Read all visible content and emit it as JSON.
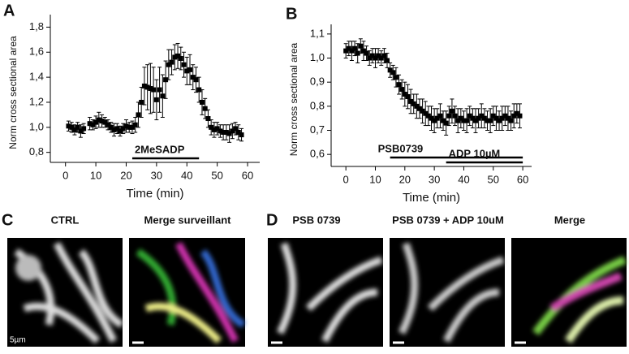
{
  "chart_data": [
    {
      "type": "scatter",
      "panel": "A",
      "x_label": "Time (min)",
      "y_label": "Norm cross sectional area",
      "color": "#000000",
      "xlim": [
        -5,
        64
      ],
      "ylim": [
        0.72,
        1.9
      ],
      "xticks": [
        0,
        10,
        20,
        30,
        40,
        50,
        60
      ],
      "yticks": [
        {
          "value": 0.8,
          "label": "0,8"
        },
        {
          "value": 1.0,
          "label": "1,0"
        },
        {
          "value": 1.2,
          "label": "1,2"
        },
        {
          "value": 1.4,
          "label": "1,4"
        },
        {
          "value": 1.6,
          "label": "1,6"
        },
        {
          "value": 1.8,
          "label": "1,8"
        }
      ],
      "annotations": [
        {
          "text": "2MeSADP",
          "x": [
            22,
            44
          ]
        }
      ],
      "x": [
        1,
        2,
        3,
        4,
        5,
        6,
        8,
        9,
        10,
        11,
        12,
        13,
        14,
        15,
        16,
        17,
        18,
        19,
        20,
        21,
        22,
        23,
        24,
        25,
        26,
        27,
        28,
        29,
        30,
        31,
        32,
        33,
        34,
        35,
        36,
        37,
        38,
        39,
        40,
        41,
        42,
        43,
        44,
        45,
        46,
        47,
        48,
        49,
        50,
        51,
        52,
        53,
        54,
        55,
        56,
        57,
        58
      ],
      "values": [
        1.01,
        1.0,
        0.98,
        1.0,
        0.97,
        0.99,
        1.03,
        1.02,
        1.04,
        1.06,
        1.05,
        1.04,
        1.02,
        1.0,
        0.98,
        0.99,
        0.97,
        0.99,
        1.01,
        1.0,
        1.0,
        1.02,
        1.1,
        1.2,
        1.33,
        1.32,
        1.31,
        1.3,
        1.22,
        1.3,
        1.25,
        1.38,
        1.5,
        1.52,
        1.56,
        1.57,
        1.55,
        1.5,
        1.45,
        1.46,
        1.4,
        1.38,
        1.3,
        1.2,
        1.15,
        1.07,
        1.0,
        0.98,
        0.99,
        0.97,
        0.96,
        0.96,
        0.95,
        0.97,
        0.99,
        0.96,
        0.94
      ],
      "errors": [
        0.04,
        0.04,
        0.04,
        0.04,
        0.05,
        0.04,
        0.05,
        0.04,
        0.05,
        0.06,
        0.05,
        0.04,
        0.04,
        0.04,
        0.05,
        0.04,
        0.04,
        0.04,
        0.05,
        0.04,
        0.05,
        0.06,
        0.1,
        0.12,
        0.15,
        0.18,
        0.2,
        0.18,
        0.16,
        0.18,
        0.17,
        0.15,
        0.12,
        0.1,
        0.1,
        0.1,
        0.09,
        0.1,
        0.11,
        0.12,
        0.1,
        0.1,
        0.1,
        0.1,
        0.08,
        0.07,
        0.06,
        0.06,
        0.05,
        0.05,
        0.06,
        0.06,
        0.07,
        0.06,
        0.05,
        0.06,
        0.05
      ]
    },
    {
      "type": "scatter",
      "panel": "B",
      "x_label": "Time (min)",
      "y_label": "Norm cross sectional area",
      "color": "#000000",
      "xlim": [
        -5,
        63
      ],
      "ylim": [
        0.55,
        1.14
      ],
      "xticks": [
        0,
        10,
        20,
        30,
        40,
        50,
        60
      ],
      "yticks": [
        {
          "value": 0.6,
          "label": "0,6"
        },
        {
          "value": 0.7,
          "label": "0,7"
        },
        {
          "value": 0.8,
          "label": "0,8"
        },
        {
          "value": 0.9,
          "label": "0,9"
        },
        {
          "value": 1.0,
          "label": "1,0"
        },
        {
          "value": 1.1,
          "label": "1,1"
        }
      ],
      "annotations": [
        {
          "text": "PSB0739",
          "x": [
            15,
            60
          ]
        },
        {
          "text": "ADP 10µM",
          "x": [
            34,
            60
          ]
        }
      ],
      "x": [
        0,
        1,
        2,
        3,
        4,
        5,
        6,
        7,
        8,
        9,
        10,
        11,
        12,
        13,
        14,
        15,
        16,
        17,
        18,
        19,
        20,
        21,
        22,
        23,
        24,
        25,
        26,
        27,
        28,
        29,
        30,
        31,
        32,
        33,
        34,
        35,
        36,
        37,
        38,
        39,
        40,
        41,
        42,
        43,
        44,
        45,
        46,
        47,
        48,
        49,
        50,
        51,
        52,
        53,
        54,
        55,
        56,
        57,
        58,
        59
      ],
      "values": [
        1.03,
        1.04,
        1.03,
        1.04,
        1.02,
        1.05,
        1.03,
        1.02,
        1.0,
        1.01,
        1.0,
        1.01,
        1.0,
        1.01,
        0.99,
        0.95,
        0.94,
        0.92,
        0.89,
        0.87,
        0.85,
        0.84,
        0.82,
        0.81,
        0.8,
        0.79,
        0.78,
        0.77,
        0.76,
        0.75,
        0.74,
        0.75,
        0.76,
        0.74,
        0.73,
        0.76,
        0.78,
        0.76,
        0.74,
        0.75,
        0.74,
        0.74,
        0.76,
        0.75,
        0.74,
        0.75,
        0.76,
        0.75,
        0.74,
        0.74,
        0.76,
        0.75,
        0.74,
        0.75,
        0.76,
        0.75,
        0.74,
        0.76,
        0.77,
        0.76
      ],
      "errors": [
        0.03,
        0.03,
        0.04,
        0.03,
        0.04,
        0.03,
        0.04,
        0.03,
        0.03,
        0.03,
        0.04,
        0.03,
        0.03,
        0.03,
        0.03,
        0.03,
        0.03,
        0.04,
        0.04,
        0.04,
        0.05,
        0.05,
        0.05,
        0.04,
        0.05,
        0.04,
        0.05,
        0.05,
        0.04,
        0.05,
        0.05,
        0.04,
        0.05,
        0.04,
        0.05,
        0.04,
        0.05,
        0.04,
        0.05,
        0.04,
        0.04,
        0.05,
        0.04,
        0.04,
        0.05,
        0.04,
        0.05,
        0.04,
        0.04,
        0.05,
        0.04,
        0.05,
        0.04,
        0.05,
        0.04,
        0.05,
        0.04,
        0.05,
        0.04,
        0.05
      ]
    }
  ],
  "panels": {
    "c": {
      "label": "C",
      "captions": [
        "CTRL",
        "Merge surveillant"
      ],
      "scale_bar": "5µm"
    },
    "d": {
      "label": "D",
      "captions": [
        "PSB 0739",
        "PSB 0739 + ADP 10uM",
        "Merge"
      ]
    }
  }
}
